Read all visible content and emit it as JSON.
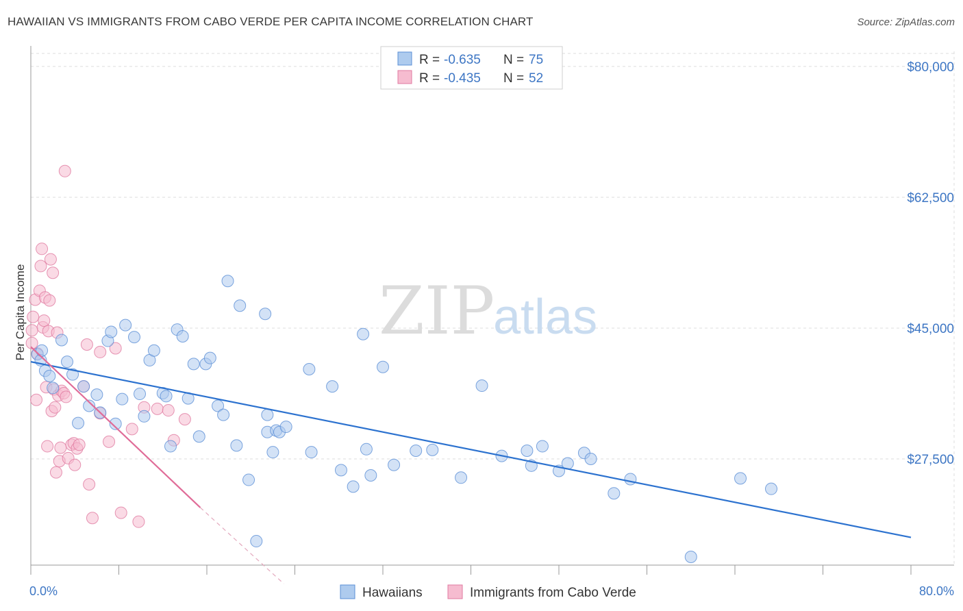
{
  "title": "HAWAIIAN VS IMMIGRANTS FROM CABO VERDE PER CAPITA INCOME CORRELATION CHART",
  "source": "Source: ZipAtlas.com",
  "watermark": {
    "zip": "ZIP",
    "atlas": "atlas"
  },
  "colors": {
    "blue_fill": "#aecbee",
    "blue_stroke": "#5b8fd6",
    "blue_line": "#2c72cf",
    "pink_fill": "#f6bcd0",
    "pink_stroke": "#e07aa0",
    "pink_line": "#e06c98",
    "grid": "#dddddd",
    "tick_text": "#3d76c4"
  },
  "legend": {
    "rows": [
      {
        "r_label": "R =",
        "r_value": "-0.635",
        "n_label": "N =",
        "n_value": "75"
      },
      {
        "r_label": "R =",
        "r_value": "-0.435",
        "n_label": "N =",
        "n_value": "52"
      }
    ]
  },
  "chart_data": {
    "type": "scatter",
    "ylabel": "Per Capita Income",
    "xlim": [
      0,
      80
    ],
    "ylim": [
      11000,
      83000
    ],
    "x_tick_labels": {
      "left": "0.0%",
      "right": "80.0%"
    },
    "y_ticks": [
      {
        "value": 80000,
        "label": "$80,000"
      },
      {
        "value": 62500,
        "label": "$62,500"
      },
      {
        "value": 45000,
        "label": "$45,000"
      },
      {
        "value": 27500,
        "label": "$27,500"
      }
    ],
    "grid": true,
    "legend_position": "top-center",
    "series": [
      {
        "name": "Hawaiians",
        "trend": {
          "x": [
            0,
            80
          ],
          "y": [
            40500,
            17000
          ]
        },
        "points": [
          [
            0.6,
            41500
          ],
          [
            0.9,
            40700
          ],
          [
            1.0,
            42000
          ],
          [
            1.3,
            39300
          ],
          [
            1.7,
            38600
          ],
          [
            2.0,
            37000
          ],
          [
            2.8,
            43400
          ],
          [
            3.3,
            40500
          ],
          [
            3.8,
            38800
          ],
          [
            4.3,
            32300
          ],
          [
            4.8,
            37200
          ],
          [
            5.3,
            34600
          ],
          [
            6.0,
            36100
          ],
          [
            6.3,
            33700
          ],
          [
            7.0,
            43300
          ],
          [
            7.3,
            44500
          ],
          [
            7.7,
            32200
          ],
          [
            8.3,
            35500
          ],
          [
            8.6,
            45400
          ],
          [
            9.4,
            43800
          ],
          [
            9.9,
            36200
          ],
          [
            10.3,
            33200
          ],
          [
            10.8,
            40700
          ],
          [
            11.2,
            42000
          ],
          [
            12.0,
            36300
          ],
          [
            12.3,
            35900
          ],
          [
            12.7,
            29200
          ],
          [
            13.3,
            44800
          ],
          [
            13.8,
            43900
          ],
          [
            14.3,
            35600
          ],
          [
            14.8,
            40200
          ],
          [
            15.3,
            30500
          ],
          [
            15.9,
            40200
          ],
          [
            16.3,
            41000
          ],
          [
            17.0,
            34600
          ],
          [
            17.5,
            33400
          ],
          [
            17.9,
            51300
          ],
          [
            18.7,
            29300
          ],
          [
            19.0,
            48000
          ],
          [
            19.8,
            24700
          ],
          [
            20.5,
            16500
          ],
          [
            21.3,
            46900
          ],
          [
            21.5,
            33400
          ],
          [
            21.5,
            31100
          ],
          [
            22.0,
            28400
          ],
          [
            22.3,
            31300
          ],
          [
            22.6,
            31100
          ],
          [
            23.2,
            31800
          ],
          [
            25.5,
            28400
          ],
          [
            25.3,
            39500
          ],
          [
            27.4,
            37200
          ],
          [
            28.2,
            26000
          ],
          [
            29.3,
            23800
          ],
          [
            30.2,
            44200
          ],
          [
            30.5,
            28800
          ],
          [
            30.9,
            25300
          ],
          [
            32.0,
            39800
          ],
          [
            33.0,
            26700
          ],
          [
            35.0,
            28600
          ],
          [
            36.5,
            28700
          ],
          [
            39.1,
            25000
          ],
          [
            41.0,
            37300
          ],
          [
            42.8,
            27900
          ],
          [
            45.1,
            28600
          ],
          [
            45.5,
            26600
          ],
          [
            46.5,
            29200
          ],
          [
            48.0,
            25900
          ],
          [
            48.8,
            26900
          ],
          [
            50.3,
            28300
          ],
          [
            50.9,
            27500
          ],
          [
            53.0,
            22900
          ],
          [
            54.5,
            24800
          ],
          [
            60.0,
            14400
          ],
          [
            64.5,
            24900
          ],
          [
            67.3,
            23500
          ]
        ]
      },
      {
        "name": "Immigrants from Cabo Verde",
        "trend": {
          "x": [
            0,
            15.4
          ],
          "y": [
            42500,
            21000
          ]
        },
        "trend_dashed": {
          "x": [
            15.4,
            23
          ],
          "y": [
            21000,
            10800
          ]
        },
        "points": [
          [
            0.1,
            43000
          ],
          [
            0.1,
            44700
          ],
          [
            0.2,
            46500
          ],
          [
            0.4,
            48800
          ],
          [
            0.5,
            35400
          ],
          [
            0.6,
            41600
          ],
          [
            0.8,
            50000
          ],
          [
            0.9,
            53300
          ],
          [
            1.0,
            55600
          ],
          [
            1.1,
            45100
          ],
          [
            1.2,
            46000
          ],
          [
            1.3,
            49100
          ],
          [
            1.4,
            37100
          ],
          [
            1.5,
            29200
          ],
          [
            1.6,
            44600
          ],
          [
            1.7,
            48700
          ],
          [
            1.8,
            54200
          ],
          [
            1.9,
            33900
          ],
          [
            2.0,
            52400
          ],
          [
            2.1,
            36800
          ],
          [
            2.2,
            34400
          ],
          [
            2.3,
            25700
          ],
          [
            2.4,
            44400
          ],
          [
            2.5,
            36000
          ],
          [
            2.6,
            27200
          ],
          [
            2.7,
            29000
          ],
          [
            2.8,
            36600
          ],
          [
            3.0,
            36300
          ],
          [
            3.1,
            66000
          ],
          [
            3.2,
            35800
          ],
          [
            3.4,
            27600
          ],
          [
            3.7,
            29400
          ],
          [
            3.9,
            29600
          ],
          [
            4.0,
            26700
          ],
          [
            4.2,
            28900
          ],
          [
            4.4,
            29400
          ],
          [
            4.8,
            37200
          ],
          [
            5.1,
            42800
          ],
          [
            5.3,
            24100
          ],
          [
            5.6,
            19600
          ],
          [
            6.3,
            41800
          ],
          [
            6.3,
            33600
          ],
          [
            7.1,
            29800
          ],
          [
            7.7,
            42300
          ],
          [
            8.2,
            20300
          ],
          [
            9.2,
            31500
          ],
          [
            9.8,
            19100
          ],
          [
            10.3,
            34400
          ],
          [
            11.5,
            34200
          ],
          [
            12.5,
            34000
          ],
          [
            13.0,
            30000
          ],
          [
            14.0,
            32800
          ]
        ]
      }
    ]
  }
}
